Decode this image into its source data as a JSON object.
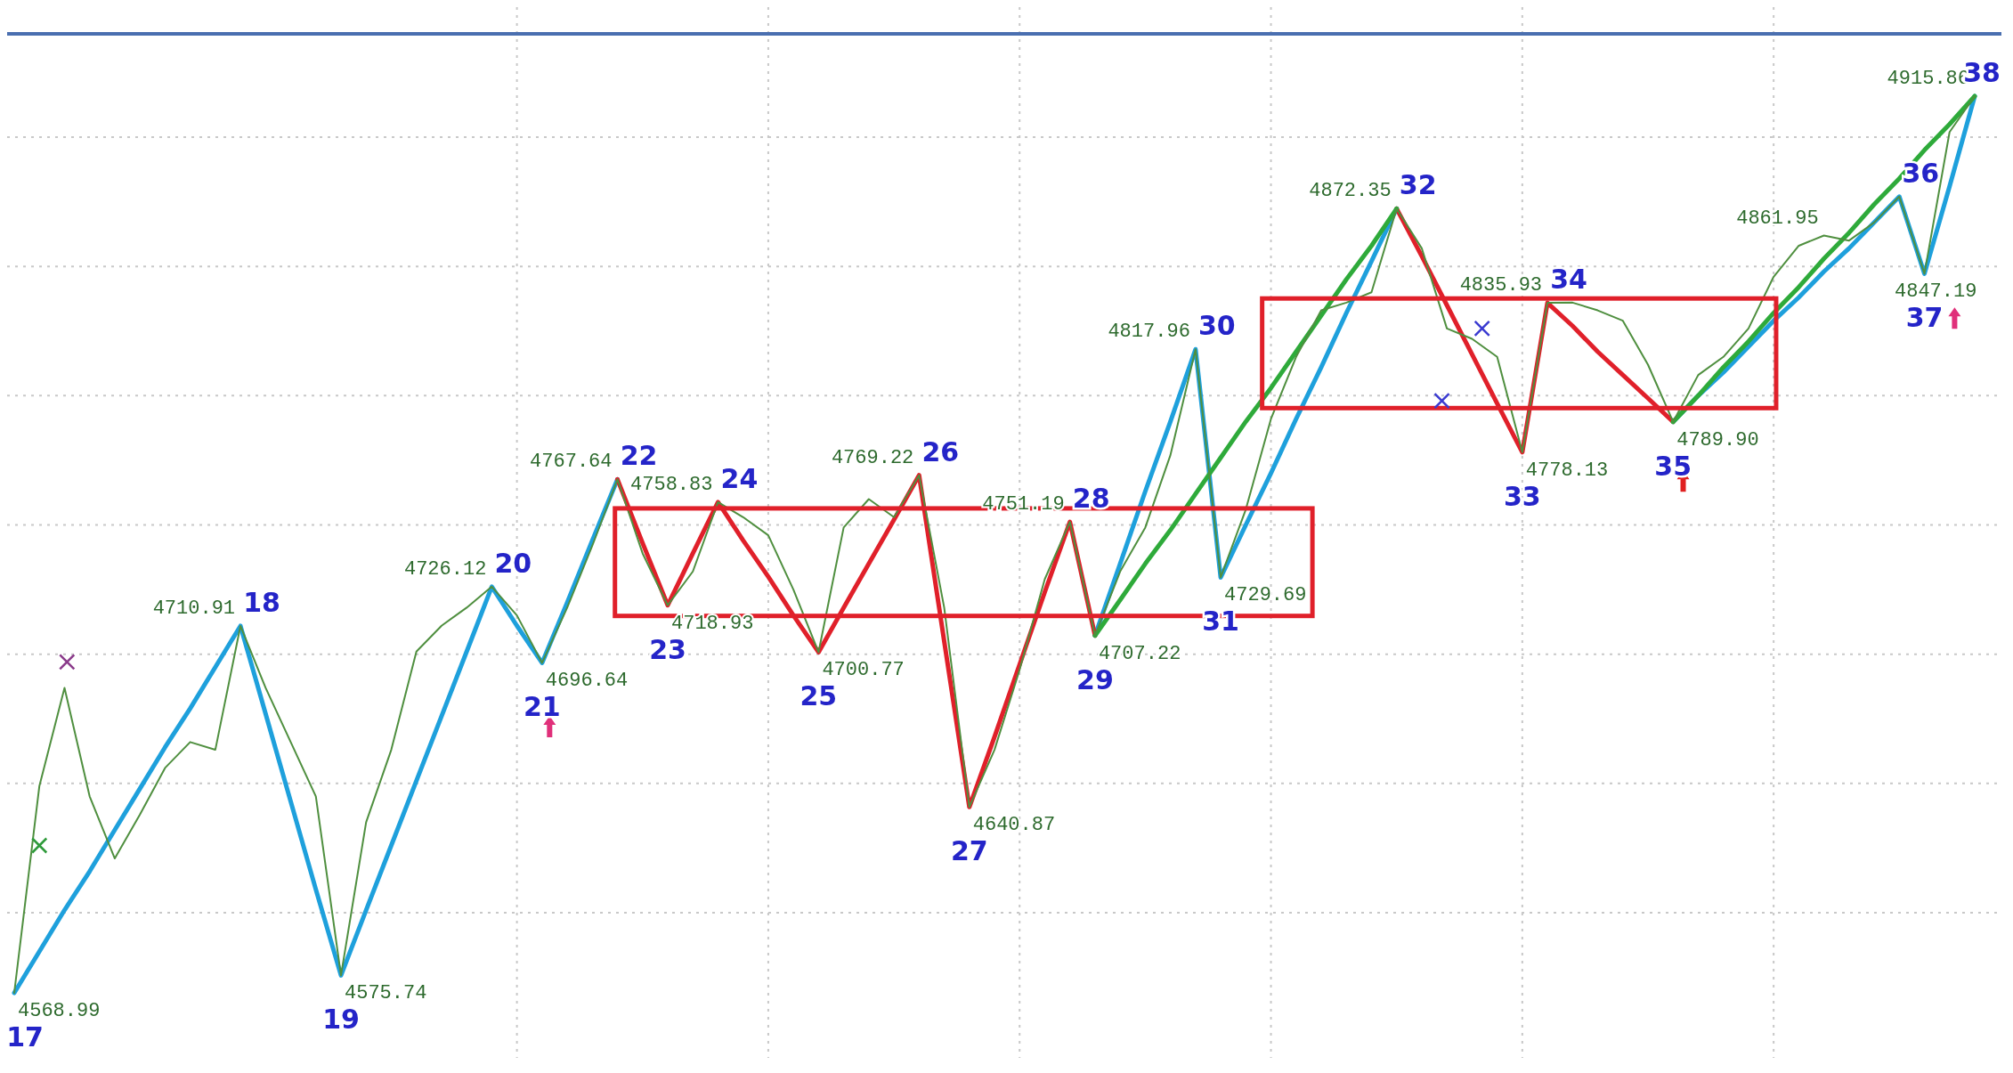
{
  "chart_data": {
    "type": "line",
    "grid": true,
    "yticks": [
      {
        "value": 4600,
        "label": null
      },
      {
        "value": 4650,
        "label": null
      },
      {
        "value": 4700,
        "label": null
      },
      {
        "value": 4750,
        "label": null
      },
      {
        "value": 4800,
        "label": null
      },
      {
        "value": 4850,
        "label": null
      },
      {
        "value": 4900,
        "label": null
      }
    ],
    "categories": [
      null,
      null,
      null,
      null,
      null,
      null,
      null,
      null,
      null,
      null,
      null,
      null,
      null,
      null,
      null,
      null,
      null,
      null,
      null,
      null,
      null,
      null,
      null,
      null,
      null,
      null,
      null,
      null,
      null,
      null,
      null,
      null,
      null,
      null,
      null,
      null,
      null,
      null,
      null,
      null,
      null,
      null,
      null,
      null,
      null,
      null,
      null,
      null,
      null,
      null,
      null,
      null,
      null,
      null,
      null,
      null,
      null,
      null,
      null,
      null,
      null,
      null,
      null,
      null,
      null,
      null,
      null,
      null,
      null,
      null,
      null,
      null,
      null,
      null,
      null,
      null,
      null,
      null,
      null
    ],
    "series": [
      {
        "type": "line",
        "color": "#4f8f3f",
        "values": [
          4568.99,
          4649,
          4687,
          4645,
          4621,
          4638,
          4656,
          4666,
          4663,
          4710.91,
          4687,
          4666,
          4645,
          4575.74,
          4635,
          4663,
          4701,
          4711,
          4718,
          4726.12,
          4715,
          4696.64,
          4718,
          4742,
          4767.64,
          4739,
          4718.93,
          4732,
          4758.83,
          4753,
          4746,
          4725,
          4700.77,
          4749,
          4760,
          4753,
          4769.22,
          4718,
          4640.87,
          4663,
          4694,
          4729,
          4751.19,
          4707.22,
          4732,
          4749,
          4777,
          4817.96,
          4729.69,
          4756,
          4791,
          4815,
          4833,
          4836,
          4840,
          4872.35,
          4857,
          4826,
          4822,
          4815,
          4778.13,
          4835.93,
          4836,
          4833,
          4829,
          4812,
          4789.9,
          4808,
          4815,
          4826,
          4846,
          4858,
          4861.95,
          4860,
          4867,
          4877,
          4847.19,
          4902,
          4915.86
        ],
        "value_labels": [
          null,
          null,
          null,
          null,
          null,
          null,
          null,
          null,
          null,
          null,
          null,
          null,
          null,
          null,
          null,
          null,
          null,
          null,
          null,
          null,
          null,
          null,
          null,
          null,
          null,
          null,
          null,
          null,
          null,
          null,
          null,
          null,
          null,
          null,
          null,
          null,
          null,
          null,
          null,
          null,
          null,
          null,
          null,
          null,
          null,
          null,
          null,
          null,
          null,
          null,
          null,
          null,
          null,
          null,
          null,
          null,
          null,
          null,
          null,
          null,
          null,
          null,
          null,
          null,
          null,
          null,
          null,
          null,
          null,
          null,
          null,
          null,
          "4861.95",
          null,
          null,
          null,
          null,
          null,
          null
        ]
      },
      {
        "type": "line",
        "color": "#1ea0dc",
        "values": [
          4568.99,
          4585,
          4601,
          4616,
          4632,
          4648,
          4664,
          4679,
          4695,
          4710.91,
          4677,
          4643,
          4609,
          4575.74,
          4601,
          4626,
          4651,
          4676,
          4701,
          4726.12,
          4711,
          4696.64,
          4720,
          4744,
          4767.64,
          null,
          null,
          null,
          null,
          null,
          null,
          null,
          null,
          null,
          null,
          null,
          null,
          null,
          null,
          null,
          null,
          null,
          null,
          4707.22,
          4735,
          4763,
          4790,
          4817.96,
          4729.69,
          4750,
          4770,
          4791,
          4811,
          4832,
          4852,
          4872.35,
          null,
          null,
          null,
          null,
          null,
          null,
          null,
          null,
          null,
          null,
          4789.9,
          4800,
          4809,
          4819,
          4829,
          4838,
          4848,
          4857,
          4867,
          4877,
          4847.19,
          4881,
          4915.86
        ],
        "value_labels": [
          "4568.99",
          null,
          null,
          null,
          null,
          null,
          null,
          null,
          null,
          "4710.91",
          null,
          null,
          null,
          "4575.74",
          null,
          null,
          null,
          null,
          null,
          "4726.12",
          null,
          "4696.64",
          null,
          null,
          "4767.64",
          null,
          null,
          null,
          null,
          null,
          null,
          null,
          null,
          null,
          null,
          null,
          null,
          null,
          null,
          null,
          null,
          null,
          null,
          "4707.22",
          null,
          null,
          null,
          "4817.96",
          "4729.69",
          null,
          null,
          null,
          null,
          null,
          null,
          "4872.35",
          null,
          null,
          null,
          null,
          null,
          null,
          null,
          null,
          null,
          null,
          "4789.90",
          null,
          null,
          null,
          null,
          null,
          null,
          null,
          null,
          null,
          "4847.19",
          null,
          "4915.86"
        ]
      },
      {
        "type": "line",
        "color": "#e0202a",
        "values": [
          null,
          null,
          null,
          null,
          null,
          null,
          null,
          null,
          null,
          null,
          null,
          null,
          null,
          null,
          null,
          null,
          null,
          null,
          null,
          null,
          null,
          null,
          null,
          null,
          4767.64,
          4743,
          4718.93,
          4739,
          4758.83,
          4744,
          4730,
          4715,
          4700.77,
          4718,
          4735,
          4752,
          4769.22,
          4705,
          4640.87,
          4668,
          4696,
          4724,
          4751.19,
          4707.22,
          null,
          null,
          null,
          null,
          null,
          null,
          null,
          null,
          null,
          null,
          null,
          4872.35,
          4854,
          4835,
          4816,
          4797,
          4778.13,
          4835.93,
          4827,
          4817,
          4808,
          4799,
          4789.9,
          null,
          null,
          null,
          null,
          null,
          null,
          null,
          null,
          null,
          null,
          null,
          null
        ],
        "value_labels": [
          null,
          null,
          null,
          null,
          null,
          null,
          null,
          null,
          null,
          null,
          null,
          null,
          null,
          null,
          null,
          null,
          null,
          null,
          null,
          null,
          null,
          null,
          null,
          null,
          null,
          null,
          "4718.93",
          null,
          "4758.83",
          null,
          null,
          null,
          "4700.77",
          null,
          null,
          null,
          "4769.22",
          null,
          "4640.87",
          null,
          null,
          null,
          "4751.19",
          null,
          null,
          null,
          null,
          null,
          null,
          null,
          null,
          null,
          null,
          null,
          null,
          null,
          null,
          null,
          null,
          null,
          "4778.13",
          "4835.93",
          null,
          null,
          null,
          null,
          null,
          null,
          null,
          null,
          null,
          null,
          null,
          null,
          null,
          null,
          null,
          null,
          null
        ]
      },
      {
        "type": "line",
        "color": "#2eaa3a",
        "values": [
          null,
          null,
          null,
          null,
          null,
          null,
          null,
          null,
          null,
          null,
          null,
          null,
          null,
          null,
          null,
          null,
          null,
          null,
          null,
          null,
          null,
          null,
          null,
          null,
          null,
          null,
          null,
          null,
          null,
          null,
          null,
          null,
          null,
          null,
          null,
          null,
          null,
          null,
          null,
          null,
          null,
          null,
          null,
          4707.22,
          4721,
          4735,
          4748,
          4762,
          4776,
          4790,
          4803,
          4817,
          4831,
          4845,
          4858,
          4872.35,
          null,
          null,
          null,
          null,
          null,
          null,
          null,
          null,
          null,
          null,
          4789.9,
          4800,
          4811,
          4821,
          4832,
          4842,
          4853,
          4863,
          4874,
          4884,
          4895,
          4905,
          4915.86
        ]
      }
    ],
    "annotations": [
      "17",
      "18",
      "19",
      "20",
      "21",
      "22",
      "23",
      "24",
      "25",
      "26",
      "27",
      "28",
      "29",
      "30",
      "31",
      "32",
      "33",
      "34",
      "35",
      "36",
      "37",
      "38"
    ]
  }
}
